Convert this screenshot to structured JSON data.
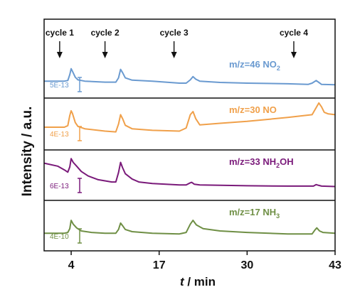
{
  "chart_data": {
    "type": "line",
    "ylabel": "Intensity / a.u.",
    "xlabel_italic": "t",
    "xlabel_rest": " / min",
    "xlim": [
      0,
      43
    ],
    "x_ticks": [
      4,
      17,
      30,
      43
    ],
    "x_tick_labels": [
      "4",
      "17",
      "30",
      "43"
    ],
    "cycles": [
      {
        "label": "cycle 1",
        "x": 2.3
      },
      {
        "label": "cycle 2",
        "x": 9.0
      },
      {
        "label": "cycle 3",
        "x": 19.2
      },
      {
        "label": "cycle 4",
        "x": 36.9
      }
    ],
    "panels": [
      {
        "name": "NO2",
        "label_main": "m/z=46 NO",
        "label_sub": "2",
        "color": "#6a9ad0",
        "scale_label": "5E-13",
        "x": [
          0,
          3,
          3.5,
          3.8,
          4.0,
          4.2,
          4.6,
          5.0,
          6.0,
          9.0,
          10.6,
          11.0,
          11.3,
          11.6,
          12.0,
          13.0,
          16.0,
          20.0,
          21.0,
          21.6,
          22.0,
          22.4,
          23.0,
          26.0,
          30.0,
          36.0,
          39.0,
          39.6,
          40.2,
          40.6,
          41.0,
          43.0
        ],
        "y": [
          0.3,
          0.3,
          0.32,
          0.5,
          0.68,
          0.6,
          0.42,
          0.34,
          0.3,
          0.27,
          0.27,
          0.4,
          0.66,
          0.56,
          0.4,
          0.33,
          0.3,
          0.24,
          0.24,
          0.34,
          0.44,
          0.36,
          0.3,
          0.26,
          0.24,
          0.22,
          0.2,
          0.24,
          0.32,
          0.26,
          0.2,
          0.19
        ]
      },
      {
        "name": "NO",
        "label_main": "m/z=30 NO",
        "label_sub": "",
        "color": "#f0a04a",
        "scale_label": "4E-13",
        "x": [
          0,
          3,
          3.5,
          3.8,
          4.0,
          4.2,
          4.6,
          5.0,
          6.0,
          9.0,
          10.6,
          11.0,
          11.3,
          11.6,
          12.0,
          13.0,
          16.0,
          20.0,
          21.0,
          21.6,
          22.0,
          22.4,
          23.0,
          26.0,
          30.0,
          36.0,
          39.6,
          40.2,
          40.6,
          41.0,
          41.4,
          42.0,
          43.0
        ],
        "y": [
          0.4,
          0.4,
          0.44,
          0.7,
          0.82,
          0.75,
          0.52,
          0.42,
          0.36,
          0.3,
          0.28,
          0.48,
          0.72,
          0.62,
          0.45,
          0.36,
          0.32,
          0.3,
          0.38,
          0.72,
          0.8,
          0.62,
          0.46,
          0.5,
          0.55,
          0.65,
          0.72,
          0.9,
          1.02,
          0.92,
          0.78,
          0.74,
          0.72
        ]
      },
      {
        "name": "NH2OH",
        "label_main": "m/z=33 NH",
        "label_sub": "2",
        "label_tail": "OH",
        "color": "#7a1a7a",
        "scale_label": "6E-13",
        "x": [
          0,
          2.0,
          3.0,
          3.5,
          3.8,
          4.0,
          4.3,
          4.8,
          5.5,
          6.5,
          8.0,
          10.0,
          10.6,
          11.0,
          11.3,
          11.6,
          12.0,
          13.0,
          14.0,
          16.0,
          18.0,
          20.0,
          21.0,
          21.5,
          21.8,
          22.2,
          23.0,
          30.0,
          36.0,
          39.8,
          40.2,
          40.6,
          41.0,
          43.0
        ],
        "y": [
          0.8,
          0.72,
          0.62,
          0.56,
          0.7,
          0.92,
          0.82,
          0.72,
          0.58,
          0.46,
          0.36,
          0.3,
          0.3,
          0.55,
          0.82,
          0.68,
          0.52,
          0.38,
          0.3,
          0.26,
          0.24,
          0.22,
          0.22,
          0.27,
          0.29,
          0.24,
          0.22,
          0.2,
          0.19,
          0.19,
          0.23,
          0.21,
          0.19,
          0.18
        ]
      },
      {
        "name": "NH3",
        "label_main": "m/z=17 NH",
        "label_sub": "3",
        "color": "#6f8f45",
        "scale_label": "4E-10",
        "x": [
          0,
          3,
          3.5,
          3.8,
          4.0,
          4.3,
          4.8,
          5.5,
          7.0,
          9.0,
          10.6,
          11.0,
          11.3,
          11.6,
          12.0,
          13.0,
          16.0,
          20.0,
          21.0,
          21.6,
          22.0,
          22.5,
          23.5,
          26.0,
          30.0,
          36.0,
          39.6,
          40.0,
          40.3,
          40.7,
          41.2,
          43.0
        ],
        "y": [
          0.28,
          0.28,
          0.3,
          0.4,
          0.62,
          0.52,
          0.42,
          0.34,
          0.3,
          0.28,
          0.28,
          0.38,
          0.55,
          0.48,
          0.38,
          0.32,
          0.28,
          0.26,
          0.3,
          0.52,
          0.62,
          0.5,
          0.4,
          0.34,
          0.3,
          0.26,
          0.26,
          0.36,
          0.42,
          0.34,
          0.3,
          0.28
        ]
      }
    ]
  }
}
